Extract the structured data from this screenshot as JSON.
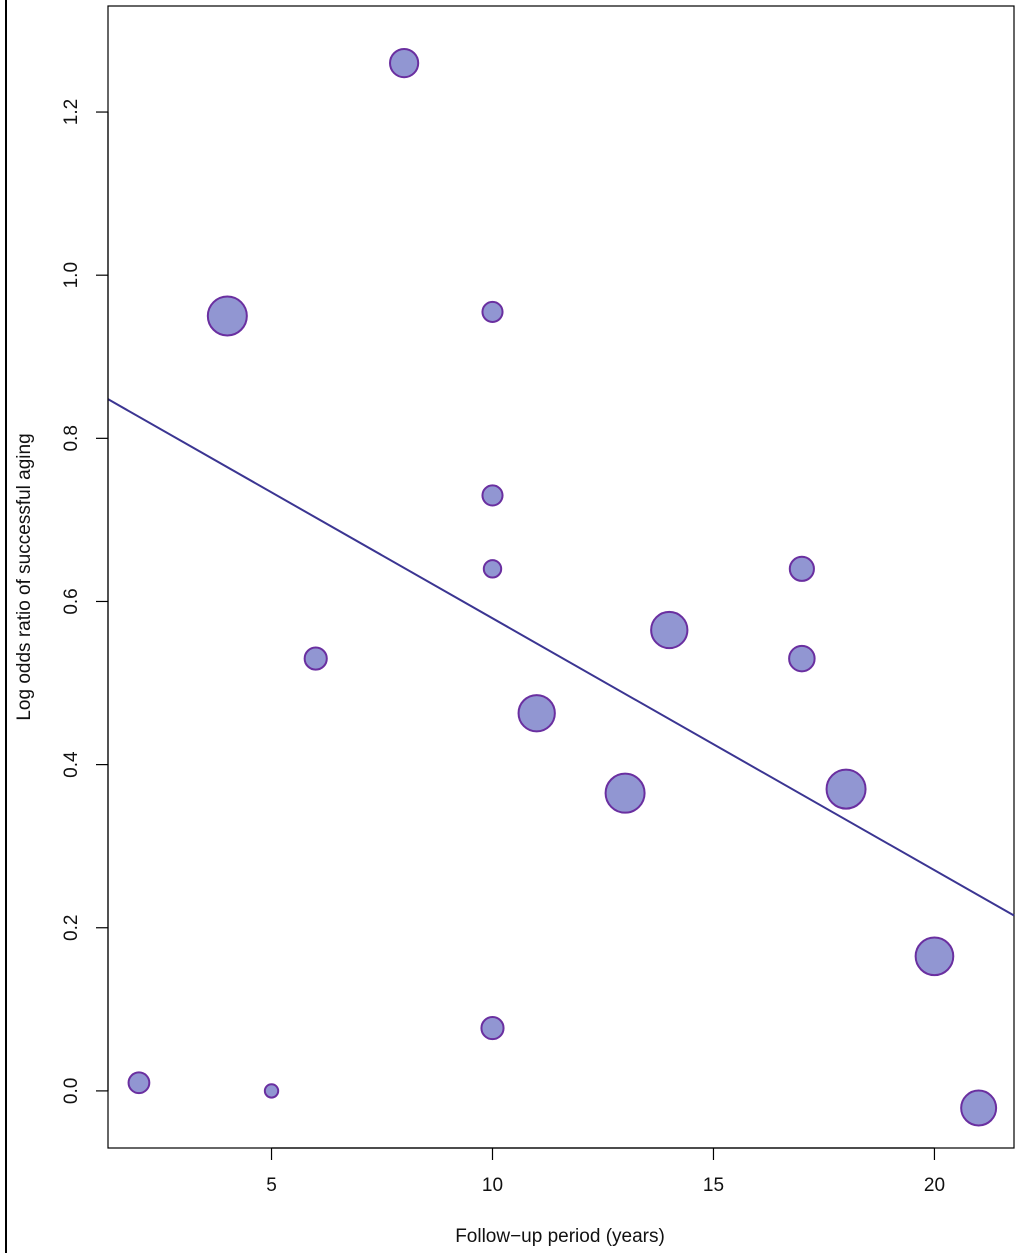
{
  "chart_data": {
    "type": "scatter",
    "title": "",
    "xlabel": "Follow−up period (years)",
    "ylabel": "Log odds ratio of successful aging",
    "xlim": [
      1.3,
      21.8
    ],
    "ylim": [
      -0.07,
      1.33
    ],
    "x_ticks": [
      5,
      10,
      15,
      20
    ],
    "y_ticks": [
      0.0,
      0.2,
      0.4,
      0.6,
      0.8,
      1.0,
      1.2
    ],
    "x_tick_labels": [
      "5",
      "10",
      "15",
      "20"
    ],
    "y_tick_labels": [
      "0.0",
      "0.2",
      "0.4",
      "0.6",
      "0.8",
      "1.0",
      "1.2"
    ],
    "grid": false,
    "legend": "none",
    "point_fill": "#9196d2",
    "point_stroke": "#6a2fa0",
    "line_color": "#3b3592",
    "points": [
      {
        "x": 2,
        "y": 0.01,
        "weight": 2.3
      },
      {
        "x": 4,
        "y": 0.95,
        "weight": 5.0
      },
      {
        "x": 5,
        "y": 0.0,
        "weight": 1.2
      },
      {
        "x": 6,
        "y": 0.53,
        "weight": 2.5
      },
      {
        "x": 8,
        "y": 1.26,
        "weight": 3.4
      },
      {
        "x": 10,
        "y": 0.955,
        "weight": 2.2
      },
      {
        "x": 10,
        "y": 0.73,
        "weight": 2.2
      },
      {
        "x": 10,
        "y": 0.64,
        "weight": 1.8
      },
      {
        "x": 10,
        "y": 0.077,
        "weight": 2.5
      },
      {
        "x": 11,
        "y": 0.463,
        "weight": 4.6
      },
      {
        "x": 13,
        "y": 0.365,
        "weight": 5.0
      },
      {
        "x": 14,
        "y": 0.565,
        "weight": 4.6
      },
      {
        "x": 17,
        "y": 0.64,
        "weight": 2.8
      },
      {
        "x": 17,
        "y": 0.53,
        "weight": 3.0
      },
      {
        "x": 18,
        "y": 0.37,
        "weight": 5.0
      },
      {
        "x": 20,
        "y": 0.165,
        "weight": 4.8
      },
      {
        "x": 21,
        "y": -0.021,
        "weight": 4.4
      }
    ],
    "regression": {
      "x": [
        1.3,
        21.8
      ],
      "y": [
        0.848,
        0.215
      ]
    }
  }
}
